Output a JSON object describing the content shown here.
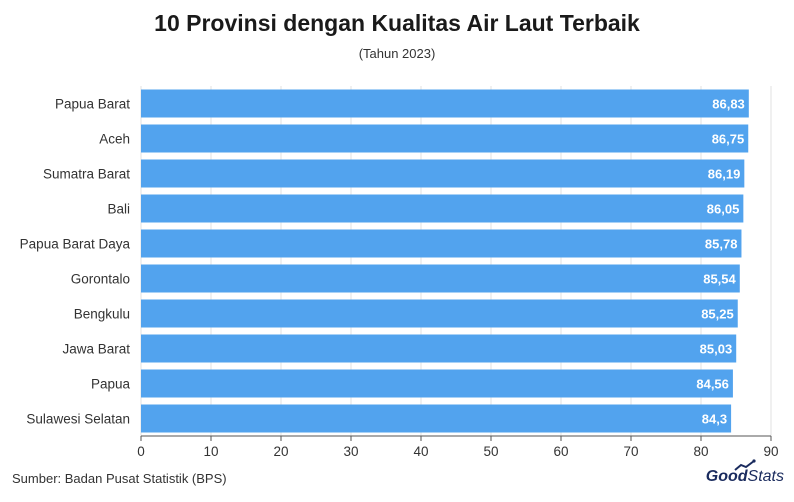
{
  "chart_data": {
    "type": "bar",
    "orientation": "horizontal",
    "title": "10 Provinsi dengan Kualitas Air Laut Terbaik",
    "subtitle": "(Tahun 2023)",
    "categories": [
      "Papua Barat",
      "Aceh",
      "Sumatra Barat",
      "Bali",
      "Papua Barat Daya",
      "Gorontalo",
      "Bengkulu",
      "Jawa Barat",
      "Papua",
      "Sulawesi Selatan"
    ],
    "values": [
      86.83,
      86.75,
      86.19,
      86.05,
      85.78,
      85.54,
      85.25,
      85.03,
      84.56,
      84.3
    ],
    "value_labels": [
      "86,83",
      "86,75",
      "86,19",
      "86,05",
      "85,78",
      "85,54",
      "85,25",
      "85,03",
      "84,56",
      "84,3"
    ],
    "xlim": [
      0,
      90
    ],
    "xticks": [
      0,
      10,
      20,
      30,
      40,
      50,
      60,
      70,
      80,
      90
    ],
    "xlabel": "",
    "ylabel": "",
    "grid": true,
    "bar_color": "#52a3ee"
  },
  "source": "Sumber: Badan Pusat Statistik (BPS)",
  "brand": {
    "good": "Good",
    "stats": "Stats"
  }
}
